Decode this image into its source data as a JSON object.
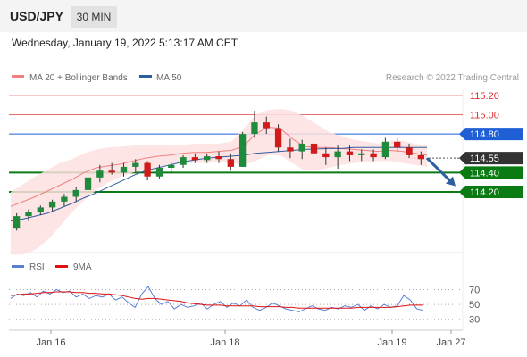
{
  "header": {
    "symbol": "USD/JPY",
    "timeframe": "30 MIN",
    "datetime": "Wednesday, January 19, 2022 5:13:17 AM CET"
  },
  "legend": {
    "ma20": "MA 20 + Bollinger Bands",
    "ma50": "MA 50",
    "credit": "Research © 2022 Trading Central",
    "rsi": "RSI",
    "rsi_ma": "9MA"
  },
  "colors": {
    "candle_up": "#1f8a3b",
    "candle_down": "#d11a1a",
    "bollinger_fill": "#fde0e0",
    "ma20": "#f08080",
    "ma50": "#2f5e9e",
    "resistance": "#e03030",
    "pivot": "#1f5fd6",
    "support": "#0a7a12",
    "rsi": "#5a7fd6",
    "rsi_ma": "#e01010"
  },
  "chart_data": [
    {
      "type": "candlestick",
      "x_ticks": [
        "Jan 16",
        "Jan 18",
        "Jan 19",
        "Jan 27"
      ],
      "ylim": [
        113.6,
        115.3
      ],
      "levels": [
        {
          "label": "115.20",
          "value": 115.2,
          "kind": "resistance"
        },
        {
          "label": "115.00",
          "value": 115.0,
          "kind": "resistance"
        },
        {
          "label": "114.80",
          "value": 114.8,
          "kind": "pivot"
        },
        {
          "label": "114.55",
          "value": 114.55,
          "kind": "last"
        },
        {
          "label": "114.40",
          "value": 114.4,
          "kind": "support"
        },
        {
          "label": "114.20",
          "value": 114.2,
          "kind": "support"
        }
      ],
      "scenario": {
        "from": 114.55,
        "to": 114.26
      },
      "ma20": [
        114.05,
        114.1,
        114.15,
        114.21,
        114.27,
        114.33,
        114.4,
        114.45,
        114.47,
        114.49,
        114.52,
        114.55,
        114.57,
        114.58,
        114.6,
        114.61,
        114.61,
        114.62,
        114.63,
        114.67,
        114.8,
        114.87,
        114.86,
        114.75,
        114.67,
        114.66,
        114.66,
        114.65,
        114.64,
        114.63,
        114.62,
        114.63,
        114.62,
        114.6,
        114.58
      ],
      "ma50": [
        113.9,
        113.92,
        113.95,
        113.98,
        114.03,
        114.08,
        114.14,
        114.19,
        114.25,
        114.31,
        114.37,
        114.42,
        114.45,
        114.48,
        114.51,
        114.53,
        114.55,
        114.56,
        114.57,
        114.58,
        114.6,
        114.61,
        114.62,
        114.63,
        114.64,
        114.645,
        114.65,
        114.65,
        114.66,
        114.66,
        114.66,
        114.66,
        114.66,
        114.66,
        114.66
      ],
      "bb_upper": [
        114.2,
        114.28,
        114.36,
        114.43,
        114.5,
        114.54,
        114.6,
        114.64,
        114.66,
        114.67,
        114.68,
        114.69,
        114.69,
        114.68,
        114.68,
        114.7,
        114.7,
        114.7,
        114.72,
        114.85,
        115.0,
        115.05,
        115.06,
        115.04,
        114.98,
        114.9,
        114.82,
        114.78,
        114.74,
        114.72,
        114.7,
        114.73,
        114.73,
        114.7,
        114.68
      ],
      "bb_lower": [
        113.55,
        113.55,
        113.6,
        113.7,
        113.84,
        113.99,
        114.11,
        114.22,
        114.3,
        114.36,
        114.4,
        114.43,
        114.45,
        114.48,
        114.5,
        114.5,
        114.5,
        114.51,
        114.5,
        114.48,
        114.52,
        114.58,
        114.58,
        114.5,
        114.42,
        114.42,
        114.45,
        114.48,
        114.5,
        114.51,
        114.52,
        114.52,
        114.5,
        114.48,
        114.46
      ],
      "candles": [
        {
          "o": 113.82,
          "h": 113.98,
          "l": 113.8,
          "c": 113.95
        },
        {
          "o": 113.95,
          "h": 114.02,
          "l": 113.9,
          "c": 113.99
        },
        {
          "o": 113.99,
          "h": 114.06,
          "l": 113.96,
          "c": 114.04
        },
        {
          "o": 114.04,
          "h": 114.12,
          "l": 114.0,
          "c": 114.1
        },
        {
          "o": 114.1,
          "h": 114.18,
          "l": 114.05,
          "c": 114.15
        },
        {
          "o": 114.15,
          "h": 114.25,
          "l": 114.1,
          "c": 114.22
        },
        {
          "o": 114.22,
          "h": 114.4,
          "l": 114.2,
          "c": 114.35
        },
        {
          "o": 114.35,
          "h": 114.48,
          "l": 114.3,
          "c": 114.42
        },
        {
          "o": 114.42,
          "h": 114.5,
          "l": 114.38,
          "c": 114.4
        },
        {
          "o": 114.4,
          "h": 114.5,
          "l": 114.36,
          "c": 114.46
        },
        {
          "o": 114.46,
          "h": 114.54,
          "l": 114.4,
          "c": 114.5
        },
        {
          "o": 114.5,
          "h": 114.52,
          "l": 114.32,
          "c": 114.36
        },
        {
          "o": 114.36,
          "h": 114.48,
          "l": 114.34,
          "c": 114.45
        },
        {
          "o": 114.45,
          "h": 114.5,
          "l": 114.4,
          "c": 114.48
        },
        {
          "o": 114.48,
          "h": 114.58,
          "l": 114.45,
          "c": 114.56
        },
        {
          "o": 114.56,
          "h": 114.6,
          "l": 114.5,
          "c": 114.53
        },
        {
          "o": 114.53,
          "h": 114.6,
          "l": 114.5,
          "c": 114.57
        },
        {
          "o": 114.57,
          "h": 114.62,
          "l": 114.5,
          "c": 114.54
        },
        {
          "o": 114.54,
          "h": 114.6,
          "l": 114.42,
          "c": 114.46
        },
        {
          "o": 114.46,
          "h": 114.82,
          "l": 114.46,
          "c": 114.8
        },
        {
          "o": 114.8,
          "h": 115.04,
          "l": 114.76,
          "c": 114.92
        },
        {
          "o": 114.92,
          "h": 114.98,
          "l": 114.8,
          "c": 114.86
        },
        {
          "o": 114.86,
          "h": 114.9,
          "l": 114.62,
          "c": 114.66
        },
        {
          "o": 114.66,
          "h": 114.75,
          "l": 114.55,
          "c": 114.62
        },
        {
          "o": 114.62,
          "h": 114.74,
          "l": 114.54,
          "c": 114.7
        },
        {
          "o": 114.7,
          "h": 114.74,
          "l": 114.55,
          "c": 114.6
        },
        {
          "o": 114.6,
          "h": 114.66,
          "l": 114.48,
          "c": 114.56
        },
        {
          "o": 114.56,
          "h": 114.68,
          "l": 114.44,
          "c": 114.62
        },
        {
          "o": 114.62,
          "h": 114.68,
          "l": 114.52,
          "c": 114.58
        },
        {
          "o": 114.58,
          "h": 114.64,
          "l": 114.52,
          "c": 114.6
        },
        {
          "o": 114.6,
          "h": 114.64,
          "l": 114.52,
          "c": 114.56
        },
        {
          "o": 114.56,
          "h": 114.76,
          "l": 114.54,
          "c": 114.72
        },
        {
          "o": 114.72,
          "h": 114.76,
          "l": 114.62,
          "c": 114.66
        },
        {
          "o": 114.66,
          "h": 114.7,
          "l": 114.55,
          "c": 114.58
        },
        {
          "o": 114.58,
          "h": 114.62,
          "l": 114.48,
          "c": 114.54
        }
      ]
    },
    {
      "type": "line",
      "ylim": [
        20,
        85
      ],
      "y_ticks": [
        70,
        50,
        30
      ],
      "series": [
        {
          "name": "RSI",
          "values": [
            58,
            64,
            62,
            66,
            60,
            68,
            64,
            70,
            66,
            68,
            60,
            64,
            58,
            62,
            60,
            64,
            56,
            60,
            52,
            46,
            64,
            74,
            58,
            50,
            54,
            44,
            50,
            46,
            48,
            52,
            44,
            50,
            54,
            46,
            52,
            48,
            56,
            46,
            42,
            46,
            52,
            48,
            44,
            42,
            40,
            44,
            48,
            44,
            42,
            46,
            44,
            48,
            46,
            50,
            42,
            48,
            44,
            50,
            46,
            48,
            62,
            56,
            44,
            42
          ]
        },
        {
          "name": "9MA",
          "values": [
            62,
            63,
            64,
            64,
            65,
            66,
            66,
            67,
            67,
            67,
            66,
            66,
            65,
            65,
            64,
            64,
            63,
            62,
            60,
            58,
            57,
            58,
            58,
            57,
            56,
            55,
            54,
            52,
            51,
            50,
            49,
            49,
            49,
            48,
            48,
            48,
            48,
            48,
            47,
            47,
            47,
            47,
            46,
            46,
            45,
            45,
            45,
            45,
            45,
            45,
            45,
            45,
            45,
            46,
            46,
            46,
            46,
            46,
            46,
            47,
            48,
            49,
            49,
            49
          ]
        }
      ]
    }
  ]
}
